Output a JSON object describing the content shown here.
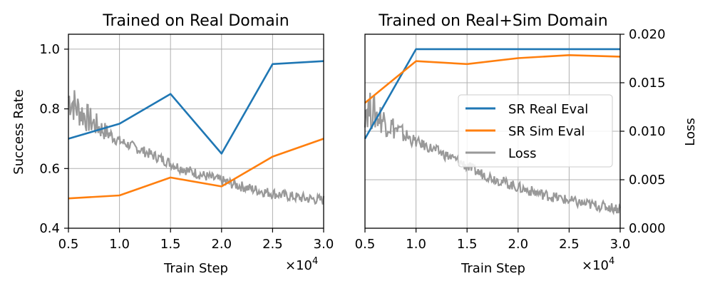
{
  "chart_data": [
    {
      "type": "line",
      "title": "Trained on Real Domain",
      "xlabel": "Train Step",
      "ylabel": "Success Rate",
      "x_multiplier_label": "×10",
      "x_multiplier_exp": "4",
      "xlim": [
        0.5,
        3.0
      ],
      "ylim": [
        0.4,
        1.05
      ],
      "xticks": [
        "0.5",
        "1.0",
        "1.5",
        "2.0",
        "2.5",
        "3.0"
      ],
      "yticks": [
        "0.4",
        "0.6",
        "0.8",
        "1.0"
      ],
      "grid": true,
      "x": [
        0.5,
        1.0,
        1.5,
        2.0,
        2.5,
        3.0
      ],
      "series": [
        {
          "values": [
            0.7,
            0.75,
            0.85,
            0.65,
            0.95,
            0.96
          ],
          "color": "#1f77b4"
        },
        {
          "values": [
            0.5,
            0.51,
            0.57,
            0.54,
            0.64,
            0.7
          ],
          "color": "#ff7f0e"
        }
      ],
      "loss": {
        "color": "#999999",
        "ylim": [
          0.0,
          0.02
        ],
        "x": [
          0.5,
          0.6,
          0.7,
          0.8,
          0.9,
          1.0,
          1.2,
          1.4,
          1.6,
          1.8,
          2.0,
          2.2,
          2.4,
          2.6,
          2.8,
          3.0
        ],
        "values": [
          0.0135,
          0.0122,
          0.0112,
          0.0104,
          0.0097,
          0.009,
          0.0081,
          0.0072,
          0.0062,
          0.0055,
          0.0049,
          0.0043,
          0.0038,
          0.0034,
          0.0031,
          0.0029
        ]
      }
    },
    {
      "type": "line",
      "title": "Trained on Real+Sim Domain",
      "xlabel": "Train Step",
      "ylabel": "Loss",
      "x_multiplier_label": "×10",
      "x_multiplier_exp": "4",
      "xlim": [
        0.5,
        3.0
      ],
      "ylim": [
        0.0,
        0.02
      ],
      "sr_ylim": [
        0.4,
        1.05
      ],
      "xticks": [
        "0.5",
        "1.0",
        "1.5",
        "2.0",
        "2.5",
        "3.0"
      ],
      "yticks": [
        "0.000",
        "0.005",
        "0.010",
        "0.015",
        "0.020"
      ],
      "grid": true,
      "legend": "center-right",
      "x": [
        0.5,
        1.0,
        1.5,
        2.0,
        2.5,
        3.0
      ],
      "series": [
        {
          "name": "SR Real Eval",
          "values": [
            0.7,
            1.0,
            1.0,
            1.0,
            1.0,
            1.0
          ],
          "color": "#1f77b4"
        },
        {
          "name": "SR Sim Eval",
          "values": [
            0.82,
            0.96,
            0.95,
            0.97,
            0.98,
            0.975
          ],
          "color": "#ff7f0e"
        }
      ],
      "loss": {
        "name": "Loss",
        "color": "#999999",
        "x": [
          0.5,
          0.6,
          0.7,
          0.8,
          0.9,
          1.0,
          1.2,
          1.4,
          1.6,
          1.8,
          2.0,
          2.2,
          2.4,
          2.6,
          2.8,
          3.0
        ],
        "values": [
          0.0125,
          0.0118,
          0.011,
          0.0102,
          0.0095,
          0.0089,
          0.008,
          0.007,
          0.0058,
          0.005,
          0.0042,
          0.0036,
          0.0031,
          0.0026,
          0.0023,
          0.002
        ]
      }
    }
  ]
}
